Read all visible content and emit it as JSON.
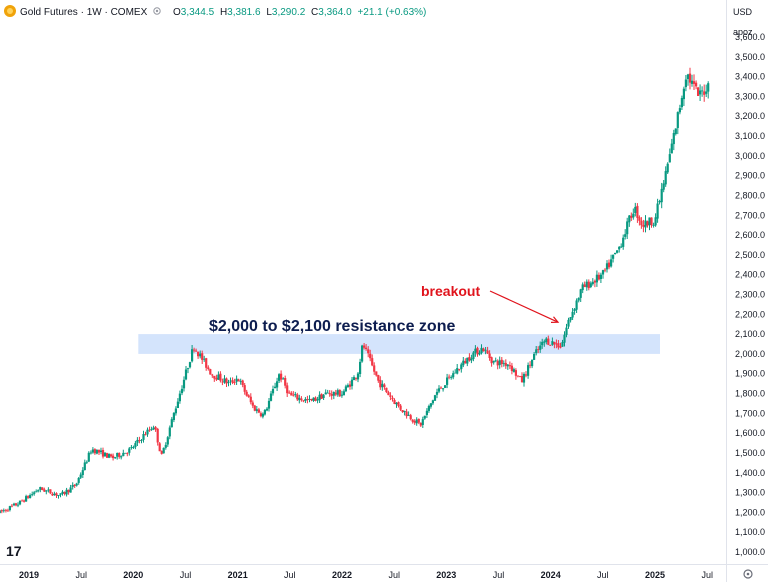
{
  "header": {
    "title": "Gold Futures · 1W · COMEX",
    "ohlc": [
      {
        "label": "O",
        "value": "3,344.5"
      },
      {
        "label": "H",
        "value": "3,381.6"
      },
      {
        "label": "L",
        "value": "3,290.2"
      },
      {
        "label": "C",
        "value": "3,364.0"
      }
    ],
    "change": "+21.1 (+0.63%)",
    "currency": "USD",
    "unit": "apoz",
    "logo_text": "17"
  },
  "colors": {
    "up": "#089981",
    "down": "#f23645",
    "zone_fill": "#d4e4fc",
    "zone_text": "#0d1d4f",
    "annotation": "#e0131c",
    "axis_text": "#131722",
    "title_icon": "#f0a30a"
  },
  "chart_data": {
    "type": "candlestick",
    "ylim": [
      1000,
      3600
    ],
    "y_ticks": [
      "1,000.0",
      "1,100.0",
      "1,200.0",
      "1,300.0",
      "1,400.0",
      "1,500.0",
      "1,600.0",
      "1,700.0",
      "1,800.0",
      "1,900.0",
      "2,000.0",
      "2,100.0",
      "2,200.0",
      "2,300.0",
      "2,400.0",
      "2,500.0",
      "2,600.0",
      "2,700.0",
      "2,800.0",
      "2,900.0",
      "3,000.0",
      "3,100.0",
      "3,200.0",
      "3,300.0",
      "3,400.0",
      "3,500.0",
      "3,600.0"
    ],
    "x_ticks": [
      {
        "label": "2019",
        "t": 2019.0,
        "year": true
      },
      {
        "label": "Jul",
        "t": 2019.5,
        "year": false
      },
      {
        "label": "2020",
        "t": 2020.0,
        "year": true
      },
      {
        "label": "Jul",
        "t": 2020.5,
        "year": false
      },
      {
        "label": "2021",
        "t": 2021.0,
        "year": true
      },
      {
        "label": "Jul",
        "t": 2021.5,
        "year": false
      },
      {
        "label": "2022",
        "t": 2022.0,
        "year": true
      },
      {
        "label": "Jul",
        "t": 2022.5,
        "year": false
      },
      {
        "label": "2023",
        "t": 2023.0,
        "year": true
      },
      {
        "label": "Jul",
        "t": 2023.5,
        "year": false
      },
      {
        "label": "2024",
        "t": 2024.0,
        "year": true
      },
      {
        "label": "Jul",
        "t": 2024.5,
        "year": false
      },
      {
        "label": "2025",
        "t": 2025.0,
        "year": true
      },
      {
        "label": "Jul",
        "t": 2025.5,
        "year": false
      }
    ],
    "price_path": [
      [
        2018.72,
        1200
      ],
      [
        2018.9,
        1245
      ],
      [
        2019.1,
        1320
      ],
      [
        2019.3,
        1285
      ],
      [
        2019.45,
        1340
      ],
      [
        2019.6,
        1520
      ],
      [
        2019.8,
        1475
      ],
      [
        2019.98,
        1520
      ],
      [
        2020.1,
        1590
      ],
      [
        2020.2,
        1640
      ],
      [
        2020.27,
        1480
      ],
      [
        2020.4,
        1720
      ],
      [
        2020.58,
        2040
      ],
      [
        2020.75,
        1900
      ],
      [
        2020.92,
        1850
      ],
      [
        2021.0,
        1880
      ],
      [
        2021.15,
        1730
      ],
      [
        2021.25,
        1690
      ],
      [
        2021.4,
        1900
      ],
      [
        2021.5,
        1790
      ],
      [
        2021.7,
        1760
      ],
      [
        2021.85,
        1800
      ],
      [
        2022.0,
        1800
      ],
      [
        2022.15,
        1900
      ],
      [
        2022.2,
        2050
      ],
      [
        2022.35,
        1860
      ],
      [
        2022.55,
        1730
      ],
      [
        2022.75,
        1640
      ],
      [
        2022.9,
        1800
      ],
      [
        2023.1,
        1920
      ],
      [
        2023.25,
        2000
      ],
      [
        2023.35,
        2030
      ],
      [
        2023.45,
        1960
      ],
      [
        2023.6,
        1950
      ],
      [
        2023.72,
        1860
      ],
      [
        2023.85,
        2000
      ],
      [
        2023.95,
        2070
      ],
      [
        2024.1,
        2040
      ],
      [
        2024.18,
        2180
      ],
      [
        2024.3,
        2330
      ],
      [
        2024.5,
        2400
      ],
      [
        2024.65,
        2530
      ],
      [
        2024.8,
        2740
      ],
      [
        2024.88,
        2650
      ],
      [
        2025.0,
        2680
      ],
      [
        2025.1,
        2900
      ],
      [
        2025.2,
        3150
      ],
      [
        2025.3,
        3420
      ],
      [
        2025.42,
        3300
      ],
      [
        2025.52,
        3364
      ]
    ],
    "candle_step": 0.0194,
    "annotations": {
      "resistance_zone": {
        "label": "$2,000 to $2,100 resistance zone",
        "y_low": 2000,
        "y_high": 2100,
        "t_start": 2020.0,
        "t_end": 2025.0
      },
      "breakout": {
        "label": "breakout",
        "from": [
          2023.4,
          2310
        ],
        "to": [
          2024.07,
          2160
        ]
      }
    }
  }
}
